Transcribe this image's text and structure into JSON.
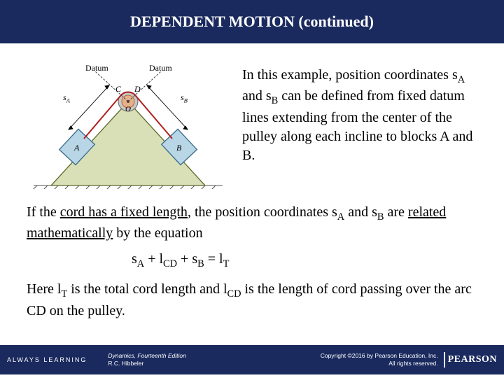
{
  "title": "DEPENDENT MOTION (continued)",
  "paragraph1_html": "In this example, position coordinates s<span class='sub'>A</span> and s<span class='sub'>B</span> can be defined from fixed datum lines extending from the center of the pulley along each incline to blocks A and B.",
  "paragraph2_html": "If the <span class='underline'>cord has a fixed length</span>, the position coordinates s<span class='sub'>A</span> and s<span class='sub'>B</span> are <span class='underline'>related mathematically</span> by the equation",
  "equation_html": "s<span class='sub'>A</span> + l<span class='sub'>CD</span> + s<span class='sub'>B</span> = l<span class='sub'>T</span>",
  "paragraph3_html": "Here l<span class='sub'>T</span> is the total cord length and l<span class='sub'>CD</span> is the length of cord passing over the arc CD on the pulley.",
  "footer": {
    "always": "ALWAYS LEARNING",
    "book_line1": "Dynamics, Fourteenth Edition",
    "book_line2": "R.C. Hibbeler",
    "copy_line1": "Copyright ©2016 by Pearson Education, Inc.",
    "copy_line2": "All rights reserved.",
    "brand": "PEARSON"
  },
  "diagram": {
    "labels": {
      "datum_left": "Datum",
      "datum_right": "Datum",
      "sA": "s",
      "sA_sub": "A",
      "sB": "s",
      "sB_sub": "B",
      "C": "C",
      "D": "D",
      "O": "O",
      "A": "A",
      "B": "B"
    },
    "colors": {
      "triangle_fill": "#d9e0b8",
      "triangle_stroke": "#5a6b2a",
      "block_fill": "#b8d6e6",
      "block_stroke": "#3a6b8a",
      "pulley_outer": "#888888",
      "pulley_inner": "#e8b08a",
      "cord": "#b02020",
      "datum_line": "#444444",
      "text": "#000000",
      "ground_hatch": "#555555"
    }
  }
}
